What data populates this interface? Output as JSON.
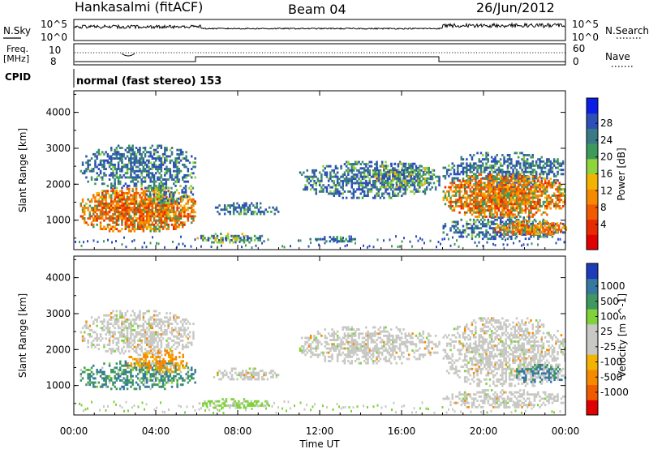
{
  "header": {
    "station": "Hankasalmi (fitACF)",
    "beam": "Beam 04",
    "date": "26/Jun/2012"
  },
  "top_panels": {
    "nsky_label": "N.Sky",
    "nsky_ticks": [
      "10^5",
      "10^0"
    ],
    "nsearch_label": "N.Search",
    "nsearch_ticks": [
      "10^5",
      "10^0"
    ],
    "freq_label": "Freq.",
    "freq_unit": "[MHz]",
    "freq_ticks": [
      "10",
      "8"
    ],
    "nave_label": "Nave",
    "nave_ticks": [
      "60",
      "0"
    ],
    "cpid_label": "CPID",
    "cpid_text": "normal (fast stereo) 153"
  },
  "axes": {
    "ylabel": "Slant Range [km]",
    "yticks": [
      "4000",
      "3000",
      "2000",
      "1000"
    ],
    "xlabel": "Time UT",
    "xticks": [
      "00:00",
      "04:00",
      "08:00",
      "12:00",
      "16:00",
      "20:00",
      "00:00"
    ]
  },
  "chart_data": [
    {
      "type": "heatmap",
      "title": "",
      "xlabel": "Time UT",
      "ylabel": "Slant Range [km]",
      "xlim_hours": [
        0,
        24
      ],
      "ylim": [
        180,
        4600
      ],
      "colorbar": {
        "label": "Power [dB]",
        "ticks": [
          "28",
          "24",
          "20",
          "16",
          "12",
          "8",
          "4"
        ],
        "colors": [
          "#0a1ee6",
          "#2d4fb8",
          "#3a7a86",
          "#3e9a5a",
          "#8fd43a",
          "#f2b400",
          "#f58a00",
          "#f05a00",
          "#e82a00",
          "#e00000"
        ]
      },
      "regions": [
        {
          "t": [
            0.3,
            5.9
          ],
          "r": [
            1900,
            3100
          ],
          "level": "low"
        },
        {
          "t": [
            0.3,
            5.9
          ],
          "r": [
            700,
            1900
          ],
          "level": "high"
        },
        {
          "t": [
            3.5,
            5.8
          ],
          "r": [
            1500,
            2100
          ],
          "level": "mid"
        },
        {
          "t": [
            6.0,
            9.2
          ],
          "r": [
            400,
            650
          ],
          "level": "mid"
        },
        {
          "t": [
            6.8,
            10.0
          ],
          "r": [
            1150,
            1500
          ],
          "level": "low"
        },
        {
          "t": [
            11.5,
            14.0
          ],
          "r": [
            420,
            560
          ],
          "level": "low"
        },
        {
          "t": [
            11.0,
            17.8
          ],
          "r": [
            1650,
            2650
          ],
          "level": "low"
        },
        {
          "t": [
            14.5,
            17.5
          ],
          "r": [
            1900,
            2600
          ],
          "level": "mid"
        },
        {
          "t": [
            18.0,
            24.0
          ],
          "r": [
            1900,
            2900
          ],
          "level": "low"
        },
        {
          "t": [
            18.0,
            24.0
          ],
          "r": [
            1100,
            2300
          ],
          "level": "high"
        },
        {
          "t": [
            18.0,
            24.0
          ],
          "r": [
            500,
            1100
          ],
          "level": "low"
        },
        {
          "t": [
            20.5,
            24.0
          ],
          "r": [
            600,
            1000
          ],
          "level": "high"
        }
      ]
    },
    {
      "type": "heatmap",
      "title": "",
      "xlabel": "Time UT",
      "ylabel": "Slant Range [km]",
      "xlim_hours": [
        0,
        24
      ],
      "ylim": [
        180,
        4600
      ],
      "colorbar": {
        "label": "Velocity [m s^-1]",
        "ticks": [
          "1000",
          "500",
          "100",
          "25",
          "-25",
          "-100",
          "-500",
          "-1000"
        ],
        "colors": [
          "#1e3cb8",
          "#3778a0",
          "#3e9860",
          "#7fd23a",
          "#c8c8c4",
          "#c8c8c4",
          "#f2b400",
          "#f58a00",
          "#f05a00",
          "#e00000"
        ]
      },
      "regions": [
        {
          "t": [
            0.3,
            5.9
          ],
          "r": [
            1900,
            3100
          ],
          "level": "grey"
        },
        {
          "t": [
            0.3,
            5.9
          ],
          "r": [
            900,
            1700
          ],
          "level": "green"
        },
        {
          "t": [
            2.5,
            5.5
          ],
          "r": [
            1400,
            2000
          ],
          "level": "orange"
        },
        {
          "t": [
            6.0,
            9.5
          ],
          "r": [
            400,
            650
          ],
          "level": "lightgreen"
        },
        {
          "t": [
            6.8,
            10.0
          ],
          "r": [
            1150,
            1500
          ],
          "level": "grey"
        },
        {
          "t": [
            11.0,
            17.8
          ],
          "r": [
            1650,
            2650
          ],
          "level": "grey"
        },
        {
          "t": [
            18.0,
            24.0
          ],
          "r": [
            1000,
            2900
          ],
          "level": "grey"
        },
        {
          "t": [
            21.5,
            24.0
          ],
          "r": [
            1100,
            1600
          ],
          "level": "blue"
        },
        {
          "t": [
            18.0,
            24.0
          ],
          "r": [
            400,
            900
          ],
          "level": "grey"
        }
      ]
    }
  ]
}
